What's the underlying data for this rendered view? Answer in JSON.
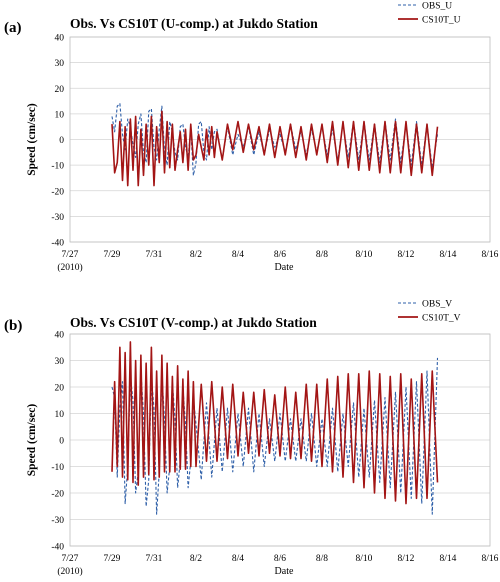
{
  "panels": [
    {
      "label": "(a)",
      "title": "Obs. Vs CS10T (U-comp.) at Jukdo Station"
    },
    {
      "label": "(b)",
      "title": "Obs. Vs CS10T (V-comp.) at Jukdo Station"
    }
  ],
  "colors": {
    "obs": "#2e5fa8",
    "model": "#a31515"
  },
  "chart_data": [
    {
      "type": "line",
      "title": "Obs. Vs CS10T (U-comp.) at Jukdo Station",
      "xlabel": "Date",
      "ylabel": "Speed (cm/sec)",
      "ylim": [
        -40,
        40
      ],
      "yticks": [
        40,
        30,
        20,
        10,
        0,
        -10,
        -20,
        -30,
        -40
      ],
      "xlim": [
        "2010-07-27",
        "2010-08-16"
      ],
      "xtick_labels": [
        "7/27",
        "7/29",
        "7/31",
        "8/2",
        "8/4",
        "8/6",
        "8/8",
        "8/10",
        "8/12",
        "8/14",
        "8/16"
      ],
      "xtick_sublabel": "(2010)",
      "grid": "horizontal",
      "legend_position": "top-right",
      "series": [
        {
          "name": "OBS_U",
          "style": "dashed",
          "color": "#2e5fa8",
          "x": [
            "07/29 00:00",
            "07/29 03:00",
            "07/29 06:00",
            "07/29 09:00",
            "07/29 12:00",
            "07/29 15:00",
            "07/29 18:00",
            "07/29 21:00",
            "07/30 00:00",
            "07/30 03:00",
            "07/30 06:00",
            "07/30 09:00",
            "07/30 12:00",
            "07/30 15:00",
            "07/30 18:00",
            "07/30 21:00",
            "07/31 00:00",
            "07/31 03:00",
            "07/31 06:00",
            "07/31 09:00",
            "07/31 12:00",
            "07/31 15:00",
            "07/31 18:00",
            "07/31 21:00",
            "08/01 00:00",
            "08/01 03:00",
            "08/01 06:00",
            "08/01 09:00",
            "08/01 12:00",
            "08/01 15:00",
            "08/01 18:00",
            "08/01 21:00",
            "08/02 00:00",
            "08/02 03:00",
            "08/02 06:00",
            "08/02 09:00",
            "08/02 12:00",
            "08/02 15:00",
            "08/02 18:00",
            "08/02 21:00",
            "08/03 00:00",
            "08/03 06:00",
            "08/03 12:00",
            "08/03 18:00",
            "08/04 00:00",
            "08/04 06:00",
            "08/04 12:00",
            "08/04 18:00",
            "08/05 00:00",
            "08/05 06:00",
            "08/05 12:00",
            "08/05 18:00",
            "08/06 00:00",
            "08/06 06:00",
            "08/06 12:00",
            "08/06 18:00",
            "08/07 00:00",
            "08/07 06:00",
            "08/07 12:00",
            "08/07 18:00",
            "08/08 00:00",
            "08/08 06:00",
            "08/08 12:00",
            "08/08 18:00",
            "08/09 00:00",
            "08/09 06:00",
            "08/09 12:00",
            "08/09 18:00",
            "08/10 00:00",
            "08/10 06:00",
            "08/10 12:00",
            "08/10 18:00",
            "08/11 00:00",
            "08/11 06:00",
            "08/11 12:00",
            "08/11 18:00",
            "08/12 00:00",
            "08/12 06:00",
            "08/12 12:00",
            "08/12 18:00",
            "08/13 00:00",
            "08/13 06:00",
            "08/13 12:00"
          ],
          "values": [
            9,
            3,
            13,
            14,
            2,
            -4,
            8,
            5,
            -2,
            -7,
            6,
            10,
            -5,
            -9,
            11,
            12,
            -3,
            -8,
            4,
            13,
            -4,
            -10,
            7,
            3,
            -5,
            -8,
            5,
            6,
            -3,
            -7,
            4,
            -14,
            -9,
            6,
            7,
            -5,
            -8,
            5,
            -4,
            3,
            4,
            -8,
            5,
            -6,
            2,
            -3,
            5,
            -6,
            3,
            -6,
            4,
            -3,
            2,
            -5,
            6,
            -4,
            3,
            -6,
            4,
            -5,
            5,
            -6,
            4,
            -8,
            6,
            -7,
            7,
            -8,
            7,
            -8,
            6,
            -9,
            7,
            -8,
            8,
            -9,
            6,
            -10,
            7,
            -10,
            6,
            -11,
            2
          ]
        },
        {
          "name": "CS10T_U",
          "style": "solid",
          "color": "#a31515",
          "x": [
            "07/29 00:00",
            "07/29 03:00",
            "07/29 06:00",
            "07/29 09:00",
            "07/29 12:00",
            "07/29 15:00",
            "07/29 18:00",
            "07/29 21:00",
            "07/30 00:00",
            "07/30 03:00",
            "07/30 06:00",
            "07/30 09:00",
            "07/30 12:00",
            "07/30 15:00",
            "07/30 18:00",
            "07/30 21:00",
            "07/31 00:00",
            "07/31 03:00",
            "07/31 06:00",
            "07/31 09:00",
            "07/31 12:00",
            "07/31 15:00",
            "07/31 18:00",
            "07/31 21:00",
            "08/01 00:00",
            "08/01 03:00",
            "08/01 06:00",
            "08/01 09:00",
            "08/01 12:00",
            "08/01 15:00",
            "08/01 18:00",
            "08/01 21:00",
            "08/02 00:00",
            "08/02 03:00",
            "08/02 06:00",
            "08/02 09:00",
            "08/02 12:00",
            "08/02 15:00",
            "08/02 18:00",
            "08/02 21:00",
            "08/03 00:00",
            "08/03 06:00",
            "08/03 12:00",
            "08/03 18:00",
            "08/04 00:00",
            "08/04 06:00",
            "08/04 12:00",
            "08/04 18:00",
            "08/05 00:00",
            "08/05 06:00",
            "08/05 12:00",
            "08/05 18:00",
            "08/06 00:00",
            "08/06 06:00",
            "08/06 12:00",
            "08/06 18:00",
            "08/07 00:00",
            "08/07 06:00",
            "08/07 12:00",
            "08/07 18:00",
            "08/08 00:00",
            "08/08 06:00",
            "08/08 12:00",
            "08/08 18:00",
            "08/09 00:00",
            "08/09 06:00",
            "08/09 12:00",
            "08/09 18:00",
            "08/10 00:00",
            "08/10 06:00",
            "08/10 12:00",
            "08/10 18:00",
            "08/11 00:00",
            "08/11 06:00",
            "08/11 12:00",
            "08/11 18:00",
            "08/12 00:00",
            "08/12 06:00",
            "08/12 12:00",
            "08/12 18:00",
            "08/13 00:00",
            "08/13 06:00",
            "08/13 12:00"
          ],
          "values": [
            6,
            -13,
            -9,
            7,
            -16,
            5,
            -18,
            8,
            -12,
            9,
            -18,
            4,
            -14,
            6,
            -10,
            9,
            -18,
            5,
            -9,
            11,
            -13,
            7,
            -11,
            6,
            -12,
            -4,
            3,
            -9,
            4,
            -12,
            6,
            -8,
            -6,
            2,
            -3,
            -8,
            4,
            -6,
            5,
            -7,
            3,
            -8,
            6,
            -4,
            7,
            -5,
            6,
            -4,
            5,
            -6,
            6,
            -7,
            5,
            -6,
            6,
            -7,
            5,
            -8,
            6,
            -6,
            6,
            -9,
            7,
            -10,
            7,
            -11,
            7,
            -12,
            7,
            -12,
            6,
            -13,
            7,
            -13,
            7,
            -13,
            7,
            -14,
            6,
            -13,
            6,
            -14,
            5
          ]
        }
      ]
    },
    {
      "type": "line",
      "title": "Obs. Vs CS10T (V-comp.) at Jukdo Station",
      "xlabel": "Date",
      "ylabel": "Speed (cm/sec)",
      "ylim": [
        -40,
        40
      ],
      "yticks": [
        40,
        30,
        20,
        10,
        0,
        -10,
        -20,
        -30,
        -40
      ],
      "xlim": [
        "2010-07-27",
        "2010-08-16"
      ],
      "xtick_labels": [
        "7/27",
        "7/29",
        "7/31",
        "8/2",
        "8/4",
        "8/6",
        "8/8",
        "8/10",
        "8/12",
        "8/14",
        "8/16"
      ],
      "xtick_sublabel": "(2010)",
      "grid": "horizontal",
      "legend_position": "top-right",
      "series": [
        {
          "name": "OBS_V",
          "style": "dashed",
          "color": "#2e5fa8",
          "x": [
            "07/29 00:00",
            "07/29 03:00",
            "07/29 06:00",
            "07/29 09:00",
            "07/29 12:00",
            "07/29 15:00",
            "07/29 18:00",
            "07/29 21:00",
            "07/30 00:00",
            "07/30 03:00",
            "07/30 06:00",
            "07/30 09:00",
            "07/30 12:00",
            "07/30 15:00",
            "07/30 18:00",
            "07/30 21:00",
            "07/31 00:00",
            "07/31 03:00",
            "07/31 06:00",
            "07/31 09:00",
            "07/31 12:00",
            "07/31 15:00",
            "07/31 18:00",
            "07/31 21:00",
            "08/01 00:00",
            "08/01 03:00",
            "08/01 06:00",
            "08/01 09:00",
            "08/01 12:00",
            "08/01 15:00",
            "08/01 18:00",
            "08/01 21:00",
            "08/02 00:00",
            "08/02 06:00",
            "08/02 12:00",
            "08/02 18:00",
            "08/03 00:00",
            "08/03 06:00",
            "08/03 12:00",
            "08/03 18:00",
            "08/04 00:00",
            "08/04 06:00",
            "08/04 12:00",
            "08/04 18:00",
            "08/05 00:00",
            "08/05 06:00",
            "08/05 12:00",
            "08/05 18:00",
            "08/06 00:00",
            "08/06 06:00",
            "08/06 12:00",
            "08/06 18:00",
            "08/07 00:00",
            "08/07 06:00",
            "08/07 12:00",
            "08/07 18:00",
            "08/08 00:00",
            "08/08 06:00",
            "08/08 12:00",
            "08/08 18:00",
            "08/09 00:00",
            "08/09 06:00",
            "08/09 12:00",
            "08/09 18:00",
            "08/10 00:00",
            "08/10 06:00",
            "08/10 12:00",
            "08/10 18:00",
            "08/11 00:00",
            "08/11 06:00",
            "08/11 12:00",
            "08/11 18:00",
            "08/12 00:00",
            "08/12 06:00",
            "08/12 12:00",
            "08/12 18:00",
            "08/13 00:00",
            "08/13 06:00",
            "08/13 12:00"
          ],
          "values": [
            20,
            16,
            -14,
            12,
            22,
            -24,
            -10,
            24,
            15,
            -20,
            -12,
            26,
            10,
            -25,
            -15,
            24,
            12,
            -28,
            -12,
            25,
            8,
            -20,
            -10,
            22,
            8,
            -18,
            -8,
            20,
            6,
            -18,
            -8,
            16,
            6,
            -15,
            14,
            -14,
            12,
            -12,
            12,
            -12,
            10,
            -10,
            12,
            -12,
            10,
            -10,
            8,
            -8,
            10,
            -8,
            8,
            -8,
            8,
            -8,
            10,
            -10,
            8,
            -10,
            12,
            -12,
            10,
            -10,
            14,
            -14,
            12,
            -14,
            15,
            -16,
            16,
            -18,
            18,
            -20,
            20,
            -22,
            22,
            -24,
            26,
            -28,
            31
          ]
        },
        {
          "name": "CS10T_V",
          "style": "solid",
          "color": "#a31515",
          "x": [
            "07/29 00:00",
            "07/29 03:00",
            "07/29 06:00",
            "07/29 09:00",
            "07/29 12:00",
            "07/29 15:00",
            "07/29 18:00",
            "07/29 21:00",
            "07/30 00:00",
            "07/30 03:00",
            "07/30 06:00",
            "07/30 09:00",
            "07/30 12:00",
            "07/30 15:00",
            "07/30 18:00",
            "07/30 21:00",
            "07/31 00:00",
            "07/31 03:00",
            "07/31 06:00",
            "07/31 09:00",
            "07/31 12:00",
            "07/31 15:00",
            "07/31 18:00",
            "07/31 21:00",
            "08/01 00:00",
            "08/01 03:00",
            "08/01 06:00",
            "08/01 09:00",
            "08/01 12:00",
            "08/01 15:00",
            "08/01 18:00",
            "08/01 21:00",
            "08/02 00:00",
            "08/02 06:00",
            "08/02 12:00",
            "08/02 18:00",
            "08/03 00:00",
            "08/03 06:00",
            "08/03 12:00",
            "08/03 18:00",
            "08/04 00:00",
            "08/04 06:00",
            "08/04 12:00",
            "08/04 18:00",
            "08/05 00:00",
            "08/05 06:00",
            "08/05 12:00",
            "08/05 18:00",
            "08/06 00:00",
            "08/06 06:00",
            "08/06 12:00",
            "08/06 18:00",
            "08/07 00:00",
            "08/07 06:00",
            "08/07 12:00",
            "08/07 18:00",
            "08/08 00:00",
            "08/08 06:00",
            "08/08 12:00",
            "08/08 18:00",
            "08/09 00:00",
            "08/09 06:00",
            "08/09 12:00",
            "08/09 18:00",
            "08/10 00:00",
            "08/10 06:00",
            "08/10 12:00",
            "08/10 18:00",
            "08/11 00:00",
            "08/11 06:00",
            "08/11 12:00",
            "08/11 18:00",
            "08/12 00:00",
            "08/12 06:00",
            "08/12 12:00",
            "08/12 18:00",
            "08/13 00:00",
            "08/13 06:00",
            "08/13 12:00"
          ],
          "values": [
            -12,
            22,
            -10,
            35,
            -14,
            33,
            -15,
            37,
            -16,
            30,
            -17,
            32,
            -14,
            29,
            -13,
            35,
            -15,
            26,
            -14,
            32,
            -12,
            29,
            -12,
            24,
            -12,
            28,
            -11,
            23,
            -11,
            26,
            -10,
            22,
            -10,
            21,
            -8,
            22,
            -8,
            20,
            -7,
            21,
            -6,
            18,
            -5,
            18,
            -6,
            19,
            -5,
            17,
            -6,
            20,
            -7,
            18,
            -7,
            21,
            -8,
            21,
            -10,
            23,
            -12,
            24,
            -14,
            25,
            -16,
            25,
            -18,
            26,
            -20,
            25,
            -22,
            24,
            -23,
            25,
            -24,
            23,
            -22,
            25,
            -22,
            26,
            -16
          ]
        }
      ]
    }
  ]
}
